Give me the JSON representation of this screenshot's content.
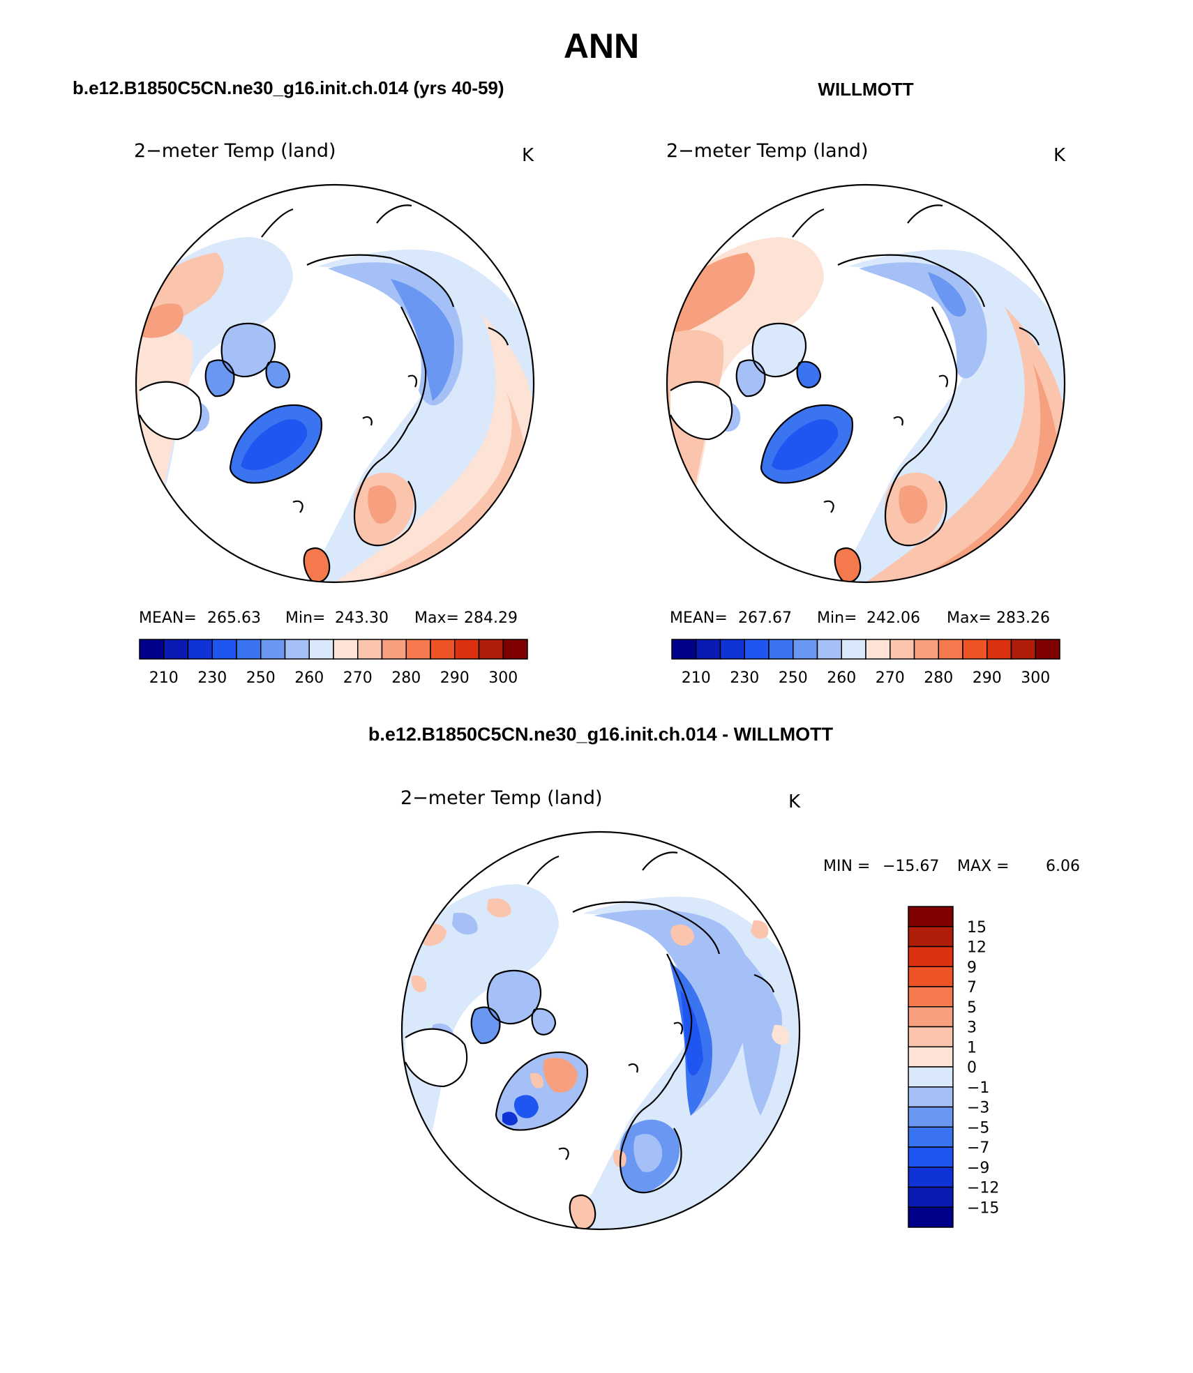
{
  "page_title": "ANN",
  "panels": {
    "model": {
      "title": "b.e12.B1850C5CN.ne30_g16.init.ch.014 (yrs 40-59)",
      "subtitle": "2−meter Temp (land)",
      "units": "K",
      "stats": {
        "mean_label": "MEAN=",
        "mean": "265.63",
        "min_label": "Min=",
        "min": "243.30",
        "max_label": "Max=",
        "max": "284.29"
      }
    },
    "obs": {
      "title": "WILLMOTT",
      "subtitle": "2−meter Temp (land)",
      "units": "K",
      "stats": {
        "mean_label": "MEAN=",
        "mean": "267.67",
        "min_label": "Min=",
        "min": "242.06",
        "max_label": "Max=",
        "max": "283.26"
      }
    },
    "diff": {
      "title": "b.e12.B1850C5CN.ne30_g16.init.ch.014 - WILLMOTT",
      "subtitle": "2−meter Temp (land)",
      "units": "K",
      "stats": {
        "min_label": "MIN =",
        "min": "−15.67",
        "max_label": "MAX =",
        "max": "6.06"
      }
    }
  },
  "chart_data": [
    {
      "type": "heatmap",
      "projection": "polar-stereographic (north pole)",
      "title": "b.e12.B1850C5CN.ne30_g16.init.ch.014 (yrs 40-59)",
      "variable": "2−meter Temp (land)",
      "units": "K",
      "mean": 265.63,
      "min": 243.3,
      "max": 284.29,
      "colorbar": {
        "orientation": "horizontal",
        "tick_labels": [
          "210",
          "230",
          "250",
          "260",
          "270",
          "280",
          "290",
          "300"
        ],
        "colors": [
          "#00008b",
          "#0a1bb3",
          "#0f33d6",
          "#1f55f0",
          "#3b74f0",
          "#6a97f2",
          "#a4c0f6",
          "#d9e8fb",
          "#fde3d6",
          "#fbc4ad",
          "#f7a07f",
          "#f47a4e",
          "#ef5427",
          "#dc3212",
          "#b01d08",
          "#7e0000"
        ]
      }
    },
    {
      "type": "heatmap",
      "projection": "polar-stereographic (north pole)",
      "title": "WILLMOTT",
      "variable": "2−meter Temp (land)",
      "units": "K",
      "mean": 267.67,
      "min": 242.06,
      "max": 283.26,
      "colorbar": {
        "orientation": "horizontal",
        "tick_labels": [
          "210",
          "230",
          "250",
          "260",
          "270",
          "280",
          "290",
          "300"
        ],
        "colors": [
          "#00008b",
          "#0a1bb3",
          "#0f33d6",
          "#1f55f0",
          "#3b74f0",
          "#6a97f2",
          "#a4c0f6",
          "#d9e8fb",
          "#fde3d6",
          "#fbc4ad",
          "#f7a07f",
          "#f47a4e",
          "#ef5427",
          "#dc3212",
          "#b01d08",
          "#7e0000"
        ]
      }
    },
    {
      "type": "heatmap",
      "projection": "polar-stereographic (north pole)",
      "title": "b.e12.B1850C5CN.ne30_g16.init.ch.014 - WILLMOTT",
      "variable": "2−meter Temp (land)",
      "units": "K",
      "min": -15.67,
      "max": 6.06,
      "colorbar": {
        "orientation": "vertical",
        "tick_labels": [
          "15",
          "12",
          "9",
          "7",
          "5",
          "3",
          "1",
          "0",
          "−1",
          "−3",
          "−5",
          "−7",
          "−9",
          "−12",
          "−15"
        ],
        "colors": [
          "#7e0000",
          "#b01d08",
          "#dc3212",
          "#ef5427",
          "#f47a4e",
          "#f7a07f",
          "#fbc4ad",
          "#fde3d6",
          "#d9e8fb",
          "#a4c0f6",
          "#6a97f2",
          "#3b74f0",
          "#1f55f0",
          "#0f33d6",
          "#0a1bb3",
          "#00008b"
        ]
      }
    }
  ]
}
